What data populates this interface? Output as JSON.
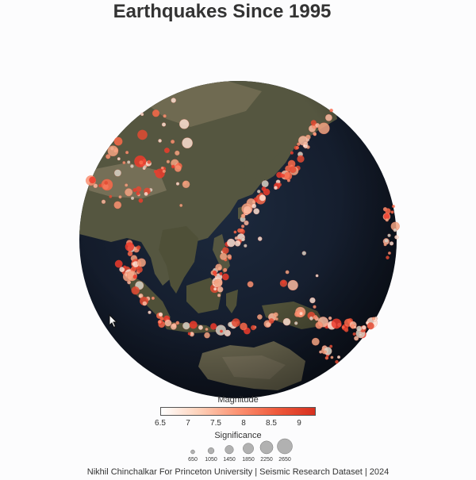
{
  "title": "Earthquakes Since 1995",
  "legend": {
    "magnitude_title": "Magnitude",
    "magnitude_ticks": [
      "6.5",
      "7",
      "7.5",
      "8",
      "8.5",
      "9"
    ],
    "magnitude_range": [
      6.5,
      9.3
    ],
    "color_low": "#ffffff",
    "color_high": "#d7301f",
    "significance_title": "Significance",
    "significance_ticks": [
      "650",
      "1050",
      "1450",
      "1850",
      "2250",
      "2650"
    ],
    "significance_values": [
      650,
      1050,
      1450,
      1850,
      2250,
      2650
    ]
  },
  "footer": "Nikhil Chinchalkar For Princeton University | Seismic Research Dataset | 2024",
  "colors": {
    "ocean": "#151d2c",
    "land": "#5a5a44",
    "land_light": "#85806a",
    "quake_edge": "#e34a33"
  },
  "icons": {
    "cursor": "mouse-pointer-icon"
  }
}
